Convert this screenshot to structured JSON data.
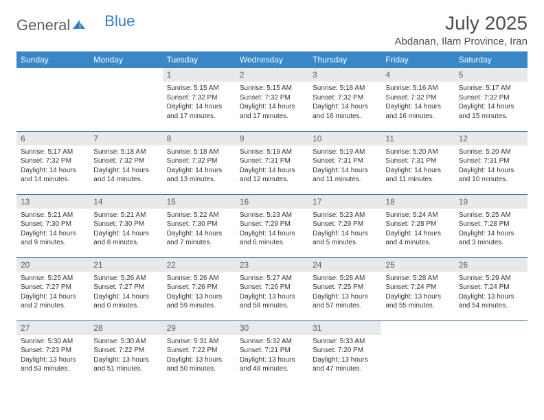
{
  "logo": {
    "general": "General",
    "blue": "Blue"
  },
  "title": "July 2025",
  "location": "Abdanan, Ilam Province, Iran",
  "colors": {
    "header_bg": "#3a87c7",
    "header_text": "#ffffff",
    "daynum_bg": "#e7e9eb",
    "border": "#3a6a95",
    "logo_gray": "#5a5f66",
    "logo_blue": "#2f7fc1"
  },
  "day_names": [
    "Sunday",
    "Monday",
    "Tuesday",
    "Wednesday",
    "Thursday",
    "Friday",
    "Saturday"
  ],
  "weeks": [
    [
      {
        "empty": true
      },
      {
        "empty": true
      },
      {
        "num": "1",
        "sunrise": "Sunrise: 5:15 AM",
        "sunset": "Sunset: 7:32 PM",
        "daylight": "Daylight: 14 hours and 17 minutes."
      },
      {
        "num": "2",
        "sunrise": "Sunrise: 5:15 AM",
        "sunset": "Sunset: 7:32 PM",
        "daylight": "Daylight: 14 hours and 17 minutes."
      },
      {
        "num": "3",
        "sunrise": "Sunrise: 5:16 AM",
        "sunset": "Sunset: 7:32 PM",
        "daylight": "Daylight: 14 hours and 16 minutes."
      },
      {
        "num": "4",
        "sunrise": "Sunrise: 5:16 AM",
        "sunset": "Sunset: 7:32 PM",
        "daylight": "Daylight: 14 hours and 16 minutes."
      },
      {
        "num": "5",
        "sunrise": "Sunrise: 5:17 AM",
        "sunset": "Sunset: 7:32 PM",
        "daylight": "Daylight: 14 hours and 15 minutes."
      }
    ],
    [
      {
        "num": "6",
        "sunrise": "Sunrise: 5:17 AM",
        "sunset": "Sunset: 7:32 PM",
        "daylight": "Daylight: 14 hours and 14 minutes."
      },
      {
        "num": "7",
        "sunrise": "Sunrise: 5:18 AM",
        "sunset": "Sunset: 7:32 PM",
        "daylight": "Daylight: 14 hours and 14 minutes."
      },
      {
        "num": "8",
        "sunrise": "Sunrise: 5:18 AM",
        "sunset": "Sunset: 7:32 PM",
        "daylight": "Daylight: 14 hours and 13 minutes."
      },
      {
        "num": "9",
        "sunrise": "Sunrise: 5:19 AM",
        "sunset": "Sunset: 7:31 PM",
        "daylight": "Daylight: 14 hours and 12 minutes."
      },
      {
        "num": "10",
        "sunrise": "Sunrise: 5:19 AM",
        "sunset": "Sunset: 7:31 PM",
        "daylight": "Daylight: 14 hours and 11 minutes."
      },
      {
        "num": "11",
        "sunrise": "Sunrise: 5:20 AM",
        "sunset": "Sunset: 7:31 PM",
        "daylight": "Daylight: 14 hours and 11 minutes."
      },
      {
        "num": "12",
        "sunrise": "Sunrise: 5:20 AM",
        "sunset": "Sunset: 7:31 PM",
        "daylight": "Daylight: 14 hours and 10 minutes."
      }
    ],
    [
      {
        "num": "13",
        "sunrise": "Sunrise: 5:21 AM",
        "sunset": "Sunset: 7:30 PM",
        "daylight": "Daylight: 14 hours and 9 minutes."
      },
      {
        "num": "14",
        "sunrise": "Sunrise: 5:21 AM",
        "sunset": "Sunset: 7:30 PM",
        "daylight": "Daylight: 14 hours and 8 minutes."
      },
      {
        "num": "15",
        "sunrise": "Sunrise: 5:22 AM",
        "sunset": "Sunset: 7:30 PM",
        "daylight": "Daylight: 14 hours and 7 minutes."
      },
      {
        "num": "16",
        "sunrise": "Sunrise: 5:23 AM",
        "sunset": "Sunset: 7:29 PM",
        "daylight": "Daylight: 14 hours and 6 minutes."
      },
      {
        "num": "17",
        "sunrise": "Sunrise: 5:23 AM",
        "sunset": "Sunset: 7:29 PM",
        "daylight": "Daylight: 14 hours and 5 minutes."
      },
      {
        "num": "18",
        "sunrise": "Sunrise: 5:24 AM",
        "sunset": "Sunset: 7:28 PM",
        "daylight": "Daylight: 14 hours and 4 minutes."
      },
      {
        "num": "19",
        "sunrise": "Sunrise: 5:25 AM",
        "sunset": "Sunset: 7:28 PM",
        "daylight": "Daylight: 14 hours and 3 minutes."
      }
    ],
    [
      {
        "num": "20",
        "sunrise": "Sunrise: 5:25 AM",
        "sunset": "Sunset: 7:27 PM",
        "daylight": "Daylight: 14 hours and 2 minutes."
      },
      {
        "num": "21",
        "sunrise": "Sunrise: 5:26 AM",
        "sunset": "Sunset: 7:27 PM",
        "daylight": "Daylight: 14 hours and 0 minutes."
      },
      {
        "num": "22",
        "sunrise": "Sunrise: 5:26 AM",
        "sunset": "Sunset: 7:26 PM",
        "daylight": "Daylight: 13 hours and 59 minutes."
      },
      {
        "num": "23",
        "sunrise": "Sunrise: 5:27 AM",
        "sunset": "Sunset: 7:26 PM",
        "daylight": "Daylight: 13 hours and 58 minutes."
      },
      {
        "num": "24",
        "sunrise": "Sunrise: 5:28 AM",
        "sunset": "Sunset: 7:25 PM",
        "daylight": "Daylight: 13 hours and 57 minutes."
      },
      {
        "num": "25",
        "sunrise": "Sunrise: 5:28 AM",
        "sunset": "Sunset: 7:24 PM",
        "daylight": "Daylight: 13 hours and 55 minutes."
      },
      {
        "num": "26",
        "sunrise": "Sunrise: 5:29 AM",
        "sunset": "Sunset: 7:24 PM",
        "daylight": "Daylight: 13 hours and 54 minutes."
      }
    ],
    [
      {
        "num": "27",
        "sunrise": "Sunrise: 5:30 AM",
        "sunset": "Sunset: 7:23 PM",
        "daylight": "Daylight: 13 hours and 53 minutes."
      },
      {
        "num": "28",
        "sunrise": "Sunrise: 5:30 AM",
        "sunset": "Sunset: 7:22 PM",
        "daylight": "Daylight: 13 hours and 51 minutes."
      },
      {
        "num": "29",
        "sunrise": "Sunrise: 5:31 AM",
        "sunset": "Sunset: 7:22 PM",
        "daylight": "Daylight: 13 hours and 50 minutes."
      },
      {
        "num": "30",
        "sunrise": "Sunrise: 5:32 AM",
        "sunset": "Sunset: 7:21 PM",
        "daylight": "Daylight: 13 hours and 48 minutes."
      },
      {
        "num": "31",
        "sunrise": "Sunrise: 5:33 AM",
        "sunset": "Sunset: 7:20 PM",
        "daylight": "Daylight: 13 hours and 47 minutes."
      },
      {
        "empty": true
      },
      {
        "empty": true
      }
    ]
  ]
}
